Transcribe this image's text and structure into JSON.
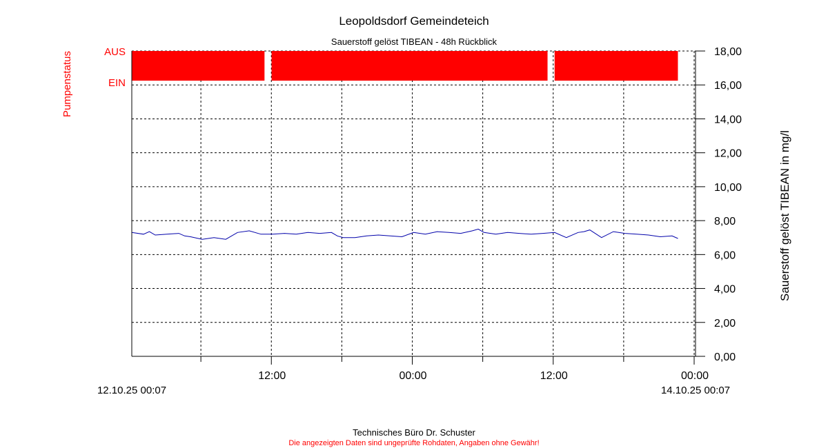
{
  "chart_data": {
    "type": "line",
    "title": "Leopoldsdorf Gemeindeteich",
    "subtitle": "Sauerstoff gelöst  TIBEAN - 48h Rückblick",
    "ylabel": "Sauerstoff gelöst  TIBEAN in mg/l",
    "ylim": [
      0,
      18
    ],
    "yticks": [
      "0,00",
      "2,00",
      "4,00",
      "6,00",
      "8,00",
      "10,00",
      "12,00",
      "14,00",
      "16,00",
      "18,00"
    ],
    "yticks_values": [
      0,
      2,
      4,
      6,
      8,
      10,
      12,
      14,
      16,
      18
    ],
    "xlim_hours": [
      0,
      48
    ],
    "xticks_major": [
      {
        "hour": 11.883,
        "label": "12:00"
      },
      {
        "hour": 23.883,
        "label": "00:00"
      },
      {
        "hour": 35.883,
        "label": "12:00"
      },
      {
        "hour": 47.883,
        "label": "00:00"
      }
    ],
    "xticks_minor_hours": [
      5.883,
      17.883,
      29.883,
      41.883
    ],
    "x_start_label": "12.10.25 00:07",
    "x_end_label": "14.10.25 00:07",
    "grid": true,
    "series": [
      {
        "color": "#0000aa",
        "x_hours": [
          0,
          1,
          1.5,
          2,
          3,
          4,
          4.5,
          5,
          6,
          6.5,
          7,
          8,
          9,
          10,
          11,
          12,
          13,
          14,
          15,
          16,
          17,
          17.5,
          18,
          19,
          20,
          21,
          22,
          23,
          24,
          25,
          26,
          27,
          28,
          29,
          29.5,
          30,
          31,
          32,
          33,
          34,
          35,
          36,
          37,
          38,
          38.5,
          39,
          40,
          41,
          42,
          43,
          44,
          45,
          46,
          46.5
        ],
        "values": [
          7.3,
          7.2,
          7.35,
          7.15,
          7.2,
          7.25,
          7.1,
          7.05,
          6.9,
          6.95,
          7.0,
          6.9,
          7.3,
          7.4,
          7.2,
          7.2,
          7.25,
          7.2,
          7.3,
          7.25,
          7.3,
          7.1,
          7.0,
          7.0,
          7.1,
          7.15,
          7.1,
          7.05,
          7.3,
          7.2,
          7.35,
          7.3,
          7.25,
          7.4,
          7.5,
          7.3,
          7.2,
          7.3,
          7.25,
          7.2,
          7.25,
          7.3,
          7.0,
          7.3,
          7.35,
          7.45,
          7.0,
          7.35,
          7.25,
          7.2,
          7.15,
          7.05,
          7.1,
          6.95
        ]
      }
    ],
    "pump_status": {
      "label": "Pumpenstatus",
      "state_top": "AUS",
      "state_bottom": "EIN",
      "color": "#ff0000",
      "on_intervals_hours": [
        [
          0,
          11.3
        ],
        [
          11.9,
          35.4
        ],
        [
          36.0,
          46.5
        ]
      ]
    }
  },
  "footer": {
    "company": "Technisches Büro Dr. Schuster",
    "disclaimer": "Die angezeigten Daten sind ungeprüfte Rohdaten, Angaben ohne Gewähr!",
    "disclaimer_color": "#ff0000"
  }
}
